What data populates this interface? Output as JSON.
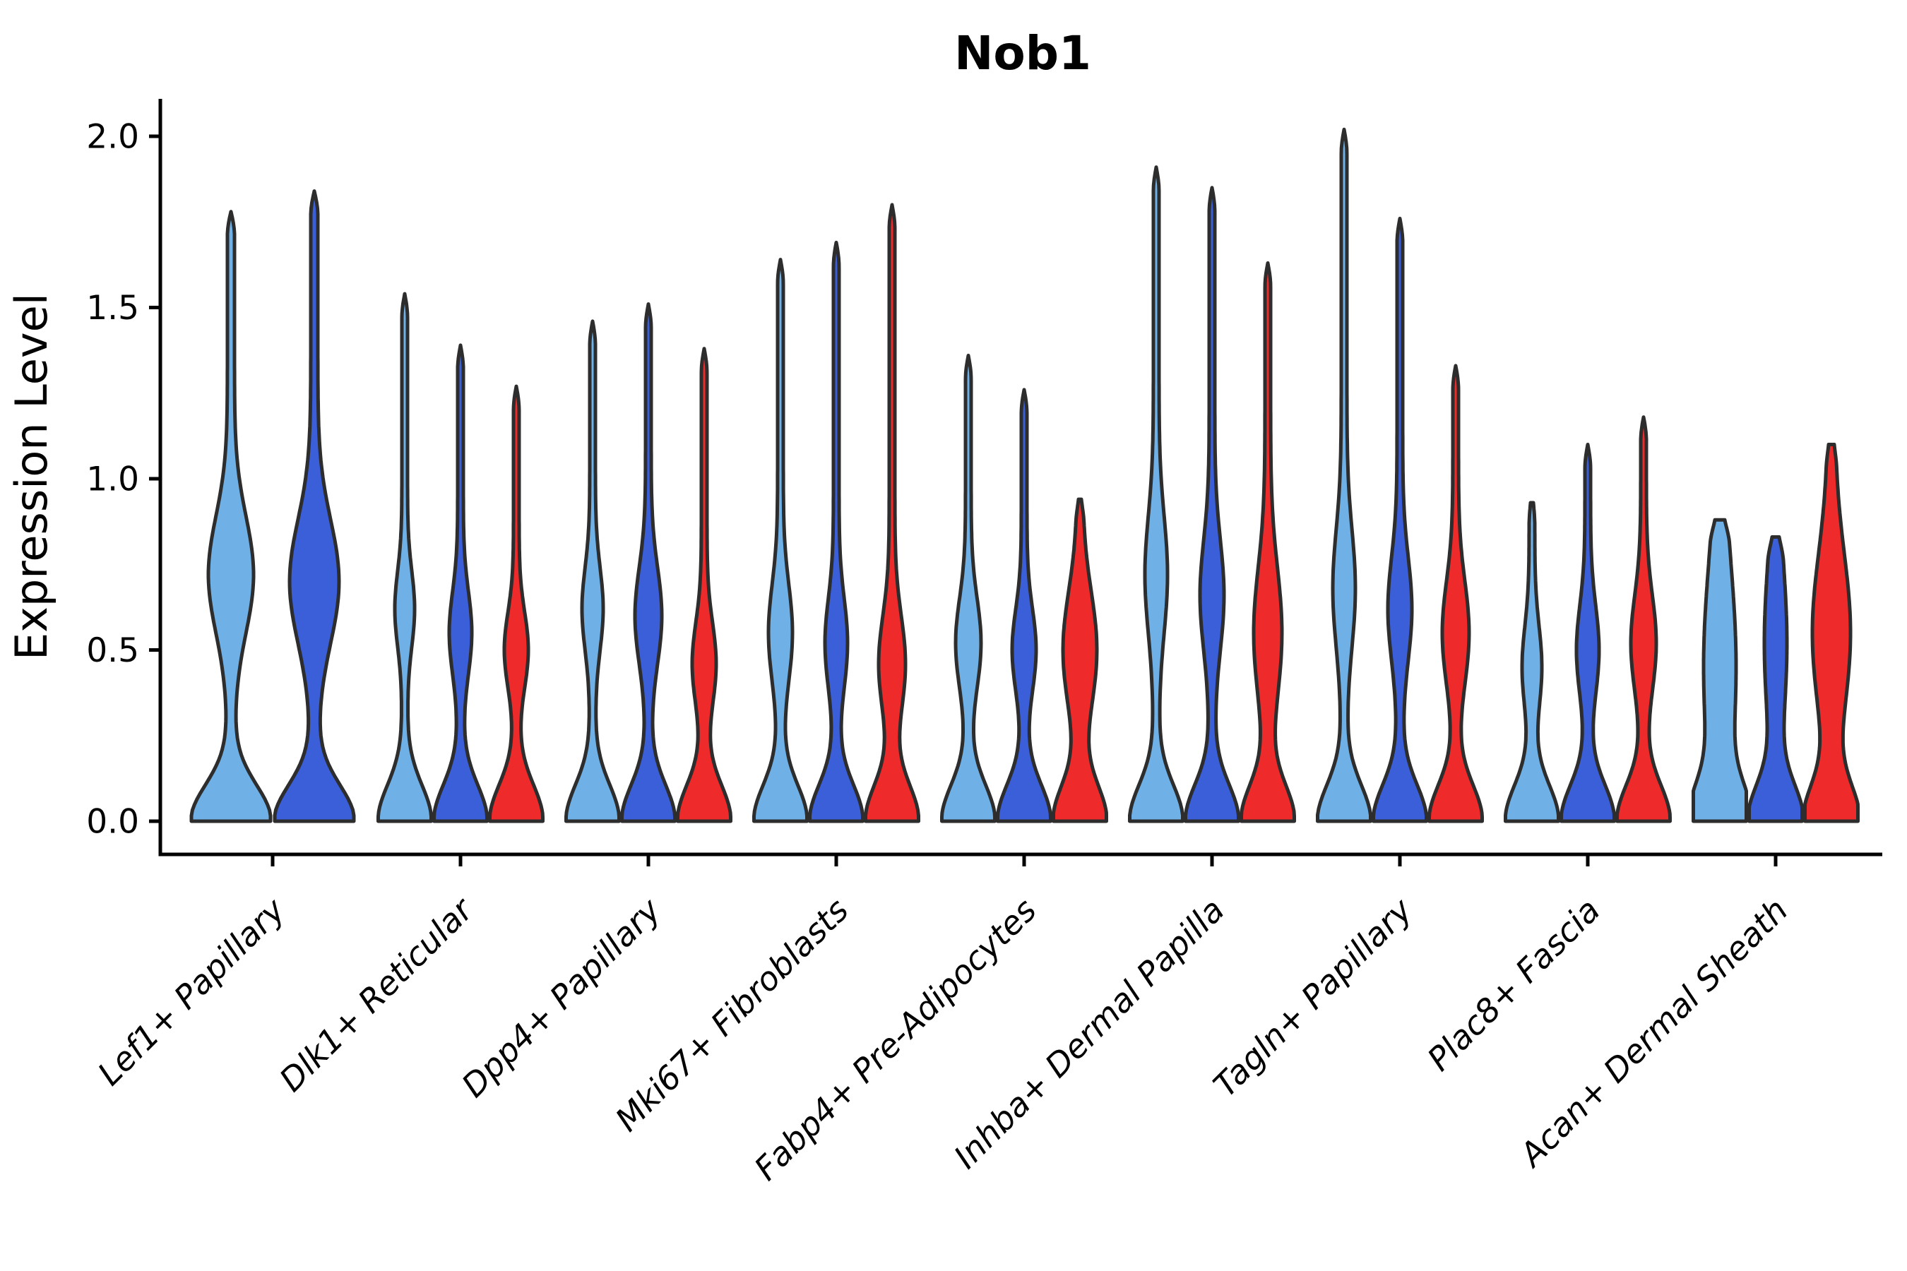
{
  "title": "Nob1",
  "axes": {
    "ylabel": "Expression Level",
    "ytick_labels": [
      "0.0",
      "0.5",
      "1.0",
      "1.5",
      "2.0"
    ]
  },
  "style": {
    "background": "#FFFFFF",
    "axis_color": "#000000",
    "violin_outline_color": "#2D2D2D",
    "split_colors": [
      "#6FB1E6",
      "#3A5FD8",
      "#EE2A2A"
    ]
  },
  "chart_data": {
    "type": "violin",
    "title": "Nob1",
    "xlabel": "",
    "ylabel": "Expression Level",
    "ylim": [
      0,
      2.15
    ],
    "yticks": [
      0.0,
      0.5,
      1.0,
      1.5,
      2.0
    ],
    "grid": false,
    "legend": "none",
    "categories": [
      "Lef1+ Papillary",
      "Dlk1+ Reticular",
      "Dpp4+ Papillary",
      "Mki67+ Fibroblasts",
      "Fabp4+ Pre-Adipocytes",
      "Inhba+ Dermal Papilla",
      "Tagln+ Papillary",
      "Plac8+ Fascia",
      "Acan+ Dermal Sheath"
    ],
    "series": [
      {
        "name": "split-1",
        "color": "#6FB1E6"
      },
      {
        "name": "split-2",
        "color": "#3A5FD8"
      },
      {
        "name": "split-3",
        "color": "#EE2A2A"
      }
    ],
    "groups": [
      {
        "category": "Lef1+ Papillary",
        "violins": [
          {
            "series": 0,
            "max_expression": 1.78,
            "zero_peak": true,
            "bulge_center": 0.72,
            "bulge_sigma": 0.17,
            "bulge_halfwidth": 27,
            "base_halfwidth": 52,
            "stem_halfwidth": 5,
            "tip_halfwidth": 0
          },
          {
            "series": 1,
            "max_expression": 1.84,
            "zero_peak": true,
            "bulge_center": 0.7,
            "bulge_sigma": 0.18,
            "bulge_halfwidth": 30,
            "base_halfwidth": 52,
            "stem_halfwidth": 5,
            "tip_halfwidth": 0
          }
        ]
      },
      {
        "category": "Dlk1+ Reticular",
        "violins": [
          {
            "series": 0,
            "max_expression": 1.54,
            "zero_peak": true,
            "bulge_center": 0.62,
            "bulge_sigma": 0.11,
            "bulge_halfwidth": 10,
            "base_halfwidth": 34,
            "stem_halfwidth": 4,
            "tip_halfwidth": 0
          },
          {
            "series": 1,
            "max_expression": 1.39,
            "zero_peak": true,
            "bulge_center": 0.55,
            "bulge_sigma": 0.12,
            "bulge_halfwidth": 12,
            "base_halfwidth": 34,
            "stem_halfwidth": 4,
            "tip_halfwidth": 0
          },
          {
            "series": 2,
            "max_expression": 1.27,
            "zero_peak": true,
            "bulge_center": 0.5,
            "bulge_sigma": 0.11,
            "bulge_halfwidth": 13,
            "base_halfwidth": 34,
            "stem_halfwidth": 4,
            "tip_halfwidth": 0
          }
        ]
      },
      {
        "category": "Dpp4+ Papillary",
        "violins": [
          {
            "series": 0,
            "max_expression": 1.46,
            "zero_peak": true,
            "bulge_center": 0.62,
            "bulge_sigma": 0.12,
            "bulge_halfwidth": 11,
            "base_halfwidth": 34,
            "stem_halfwidth": 4,
            "tip_halfwidth": 0
          },
          {
            "series": 1,
            "max_expression": 1.51,
            "zero_peak": true,
            "bulge_center": 0.6,
            "bulge_sigma": 0.14,
            "bulge_halfwidth": 15,
            "base_halfwidth": 34,
            "stem_halfwidth": 4,
            "tip_halfwidth": 0
          },
          {
            "series": 2,
            "max_expression": 1.38,
            "zero_peak": true,
            "bulge_center": 0.46,
            "bulge_sigma": 0.12,
            "bulge_halfwidth": 13,
            "base_halfwidth": 34,
            "stem_halfwidth": 4,
            "tip_halfwidth": 0
          }
        ]
      },
      {
        "category": "Mki67+ Fibroblasts",
        "violins": [
          {
            "series": 0,
            "max_expression": 1.64,
            "zero_peak": true,
            "bulge_center": 0.55,
            "bulge_sigma": 0.14,
            "bulge_halfwidth": 13,
            "base_halfwidth": 34,
            "stem_halfwidth": 4,
            "tip_halfwidth": 0
          },
          {
            "series": 1,
            "max_expression": 1.69,
            "zero_peak": true,
            "bulge_center": 0.52,
            "bulge_sigma": 0.13,
            "bulge_halfwidth": 12,
            "base_halfwidth": 34,
            "stem_halfwidth": 4,
            "tip_halfwidth": 0
          },
          {
            "series": 2,
            "max_expression": 1.8,
            "zero_peak": true,
            "bulge_center": 0.46,
            "bulge_sigma": 0.14,
            "bulge_halfwidth": 15,
            "base_halfwidth": 34,
            "stem_halfwidth": 4,
            "tip_halfwidth": 0
          }
        ]
      },
      {
        "category": "Fabp4+ Pre-Adipocytes",
        "violins": [
          {
            "series": 0,
            "max_expression": 1.36,
            "zero_peak": true,
            "bulge_center": 0.52,
            "bulge_sigma": 0.13,
            "bulge_halfwidth": 14,
            "base_halfwidth": 34,
            "stem_halfwidth": 4,
            "tip_halfwidth": 0
          },
          {
            "series": 1,
            "max_expression": 1.26,
            "zero_peak": true,
            "bulge_center": 0.5,
            "bulge_sigma": 0.12,
            "bulge_halfwidth": 13,
            "base_halfwidth": 34,
            "stem_halfwidth": 4,
            "tip_halfwidth": 0
          },
          {
            "series": 2,
            "max_expression": 0.94,
            "zero_peak": true,
            "bulge_center": 0.5,
            "bulge_sigma": 0.17,
            "bulge_halfwidth": 20,
            "base_halfwidth": 34,
            "stem_halfwidth": 4,
            "tip_halfwidth": 2
          }
        ]
      },
      {
        "category": "Inhba+ Dermal Papilla",
        "violins": [
          {
            "series": 0,
            "max_expression": 1.91,
            "zero_peak": true,
            "bulge_center": 0.72,
            "bulge_sigma": 0.17,
            "bulge_halfwidth": 12,
            "base_halfwidth": 34,
            "stem_halfwidth": 4,
            "tip_halfwidth": 0
          },
          {
            "series": 1,
            "max_expression": 1.85,
            "zero_peak": true,
            "bulge_center": 0.66,
            "bulge_sigma": 0.16,
            "bulge_halfwidth": 13,
            "base_halfwidth": 34,
            "stem_halfwidth": 4,
            "tip_halfwidth": 0
          },
          {
            "series": 2,
            "max_expression": 1.63,
            "zero_peak": true,
            "bulge_center": 0.55,
            "bulge_sigma": 0.19,
            "bulge_halfwidth": 16,
            "base_halfwidth": 34,
            "stem_halfwidth": 4,
            "tip_halfwidth": 0
          }
        ]
      },
      {
        "category": "Tagln+ Papillary",
        "violins": [
          {
            "series": 0,
            "max_expression": 2.02,
            "zero_peak": true,
            "bulge_center": 0.68,
            "bulge_sigma": 0.17,
            "bulge_halfwidth": 12,
            "base_halfwidth": 34,
            "stem_halfwidth": 4,
            "tip_halfwidth": 0
          },
          {
            "series": 1,
            "max_expression": 1.76,
            "zero_peak": true,
            "bulge_center": 0.62,
            "bulge_sigma": 0.15,
            "bulge_halfwidth": 13,
            "base_halfwidth": 34,
            "stem_halfwidth": 4,
            "tip_halfwidth": 0
          },
          {
            "series": 2,
            "max_expression": 1.33,
            "zero_peak": true,
            "bulge_center": 0.55,
            "bulge_sigma": 0.15,
            "bulge_halfwidth": 15,
            "base_halfwidth": 34,
            "stem_halfwidth": 4,
            "tip_halfwidth": 0
          }
        ]
      },
      {
        "category": "Plac8+ Fascia",
        "violins": [
          {
            "series": 0,
            "max_expression": 0.93,
            "zero_peak": true,
            "bulge_center": 0.45,
            "bulge_sigma": 0.12,
            "bulge_halfwidth": 10,
            "base_halfwidth": 34,
            "stem_halfwidth": 4,
            "tip_halfwidth": 2
          },
          {
            "series": 1,
            "max_expression": 1.1,
            "zero_peak": true,
            "bulge_center": 0.5,
            "bulge_sigma": 0.13,
            "bulge_halfwidth": 12,
            "base_halfwidth": 34,
            "stem_halfwidth": 4,
            "tip_halfwidth": 0
          },
          {
            "series": 2,
            "max_expression": 1.18,
            "zero_peak": true,
            "bulge_center": 0.52,
            "bulge_sigma": 0.14,
            "bulge_halfwidth": 14,
            "base_halfwidth": 34,
            "stem_halfwidth": 4,
            "tip_halfwidth": 0
          }
        ]
      },
      {
        "category": "Acan+ Dermal Sheath",
        "violins": [
          {
            "series": 0,
            "max_expression": 0.88,
            "zero_peak": true,
            "bulge_center": 0.45,
            "bulge_sigma": 0.3,
            "bulge_halfwidth": 18,
            "base_halfwidth": 34,
            "stem_halfwidth": 5,
            "tip_halfwidth": 7
          },
          {
            "series": 1,
            "max_expression": 0.83,
            "zero_peak": true,
            "bulge_center": 0.52,
            "bulge_sigma": 0.22,
            "bulge_halfwidth": 11,
            "base_halfwidth": 34,
            "stem_halfwidth": 5,
            "tip_halfwidth": 5
          },
          {
            "series": 2,
            "max_expression": 1.1,
            "zero_peak": true,
            "bulge_center": 0.55,
            "bulge_sigma": 0.23,
            "bulge_halfwidth": 22,
            "base_halfwidth": 34,
            "stem_halfwidth": 5,
            "tip_halfwidth": 4
          }
        ]
      }
    ]
  }
}
